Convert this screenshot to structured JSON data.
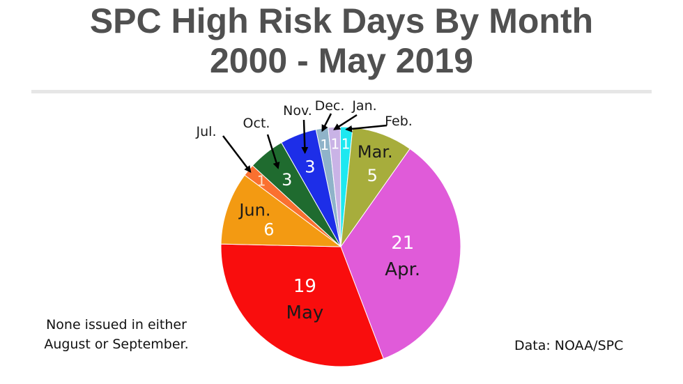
{
  "title_line1": "SPC High Risk Days By Month",
  "title_line2": "2000 - May 2019",
  "notes": {
    "left_line1": "None issued in either",
    "left_line2": "August or September.",
    "source": "Data: NOAA/SPC"
  },
  "chart_data": {
    "type": "pie",
    "title": "SPC High Risk Days By Month 2000 - May 2019",
    "slices": [
      {
        "label": "Dec.",
        "value": 1,
        "color": "#8fb3c9"
      },
      {
        "label": "Jan.",
        "value": 1,
        "color": "#c9b3e6"
      },
      {
        "label": "Feb.",
        "value": 1,
        "color": "#1ee8f0"
      },
      {
        "label": "Mar.",
        "value": 5,
        "color": "#a7ad3c"
      },
      {
        "label": "Apr.",
        "value": 21,
        "color": "#e05bd9"
      },
      {
        "label": "May",
        "value": 19,
        "color": "#f90d0d"
      },
      {
        "label": "Jun.",
        "value": 6,
        "color": "#f39a12"
      },
      {
        "label": "Jul.",
        "value": 1,
        "color": "#fa7030"
      },
      {
        "label": "Oct.",
        "value": 3,
        "color": "#1f6b2f"
      },
      {
        "label": "Nov.",
        "value": 3,
        "color": "#1d2ee8"
      }
    ]
  }
}
